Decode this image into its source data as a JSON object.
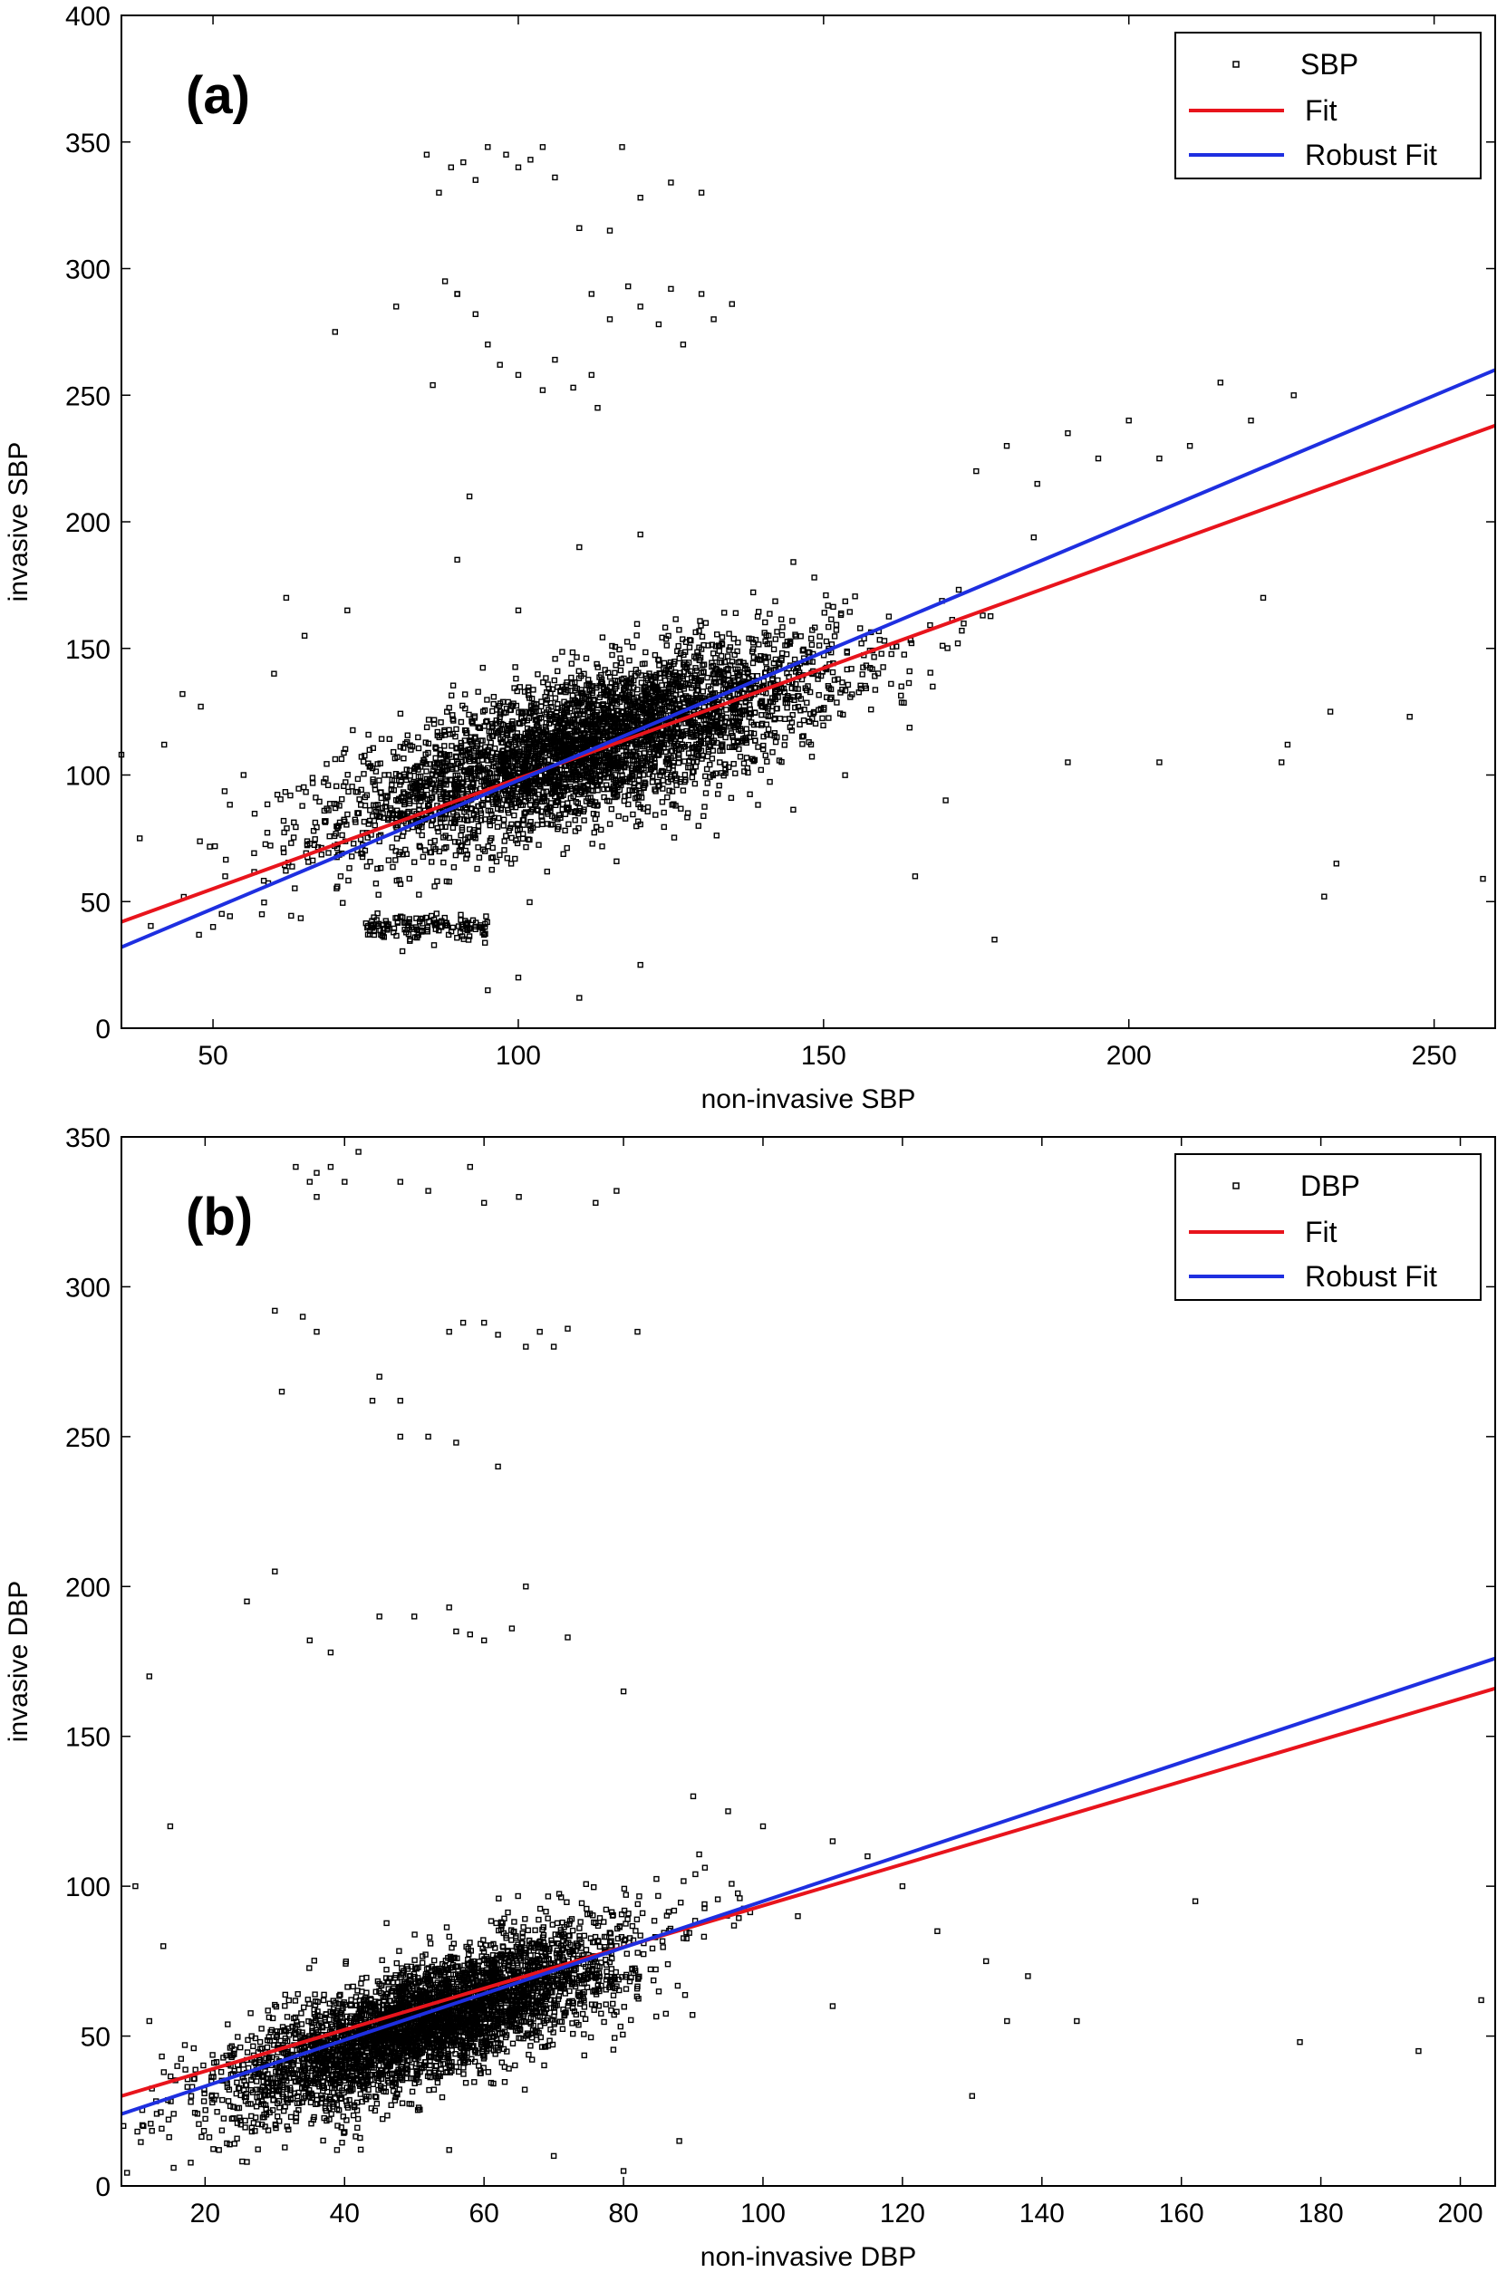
{
  "colors": {
    "fit": "#e8141c",
    "robust_fit": "#1e2fe0",
    "points": "#000000",
    "axes": "#000000",
    "background": "#ffffff"
  },
  "chart_data": [
    {
      "type": "scatter",
      "panel_label": "(a)",
      "xlabel": "non-invasive SBP",
      "ylabel": "invasive SBP",
      "xlim": [
        35,
        260
      ],
      "ylim": [
        0,
        400
      ],
      "xticks": [
        50,
        100,
        150,
        200,
        250
      ],
      "yticks": [
        0,
        50,
        100,
        150,
        200,
        250,
        300,
        350,
        400
      ],
      "grid": false,
      "legend_position": "top-right",
      "legend": [
        "SBP",
        "Fit",
        "Robust Fit"
      ],
      "scatter_series": {
        "name": "SBP",
        "cluster": {
          "center": [
            112,
            112
          ],
          "spread_x": 20,
          "spread_y": 20,
          "correlation": 0.7,
          "approx_points": 4000
        },
        "lower_band": {
          "x_range": [
            75,
            95
          ],
          "y": 40
        },
        "outliers": [
          [
            35,
            108
          ],
          [
            38,
            75
          ],
          [
            42,
            112
          ],
          [
            45,
            132
          ],
          [
            48,
            127
          ],
          [
            50,
            40
          ],
          [
            52,
            60
          ],
          [
            55,
            100
          ],
          [
            58,
            45
          ],
          [
            60,
            140
          ],
          [
            62,
            170
          ],
          [
            65,
            155
          ],
          [
            70,
            275
          ],
          [
            72,
            165
          ],
          [
            80,
            285
          ],
          [
            85,
            345
          ],
          [
            87,
            330
          ],
          [
            89,
            340
          ],
          [
            91,
            342
          ],
          [
            93,
            335
          ],
          [
            95,
            348
          ],
          [
            98,
            345
          ],
          [
            100,
            340
          ],
          [
            102,
            343
          ],
          [
            104,
            348
          ],
          [
            106,
            336
          ],
          [
            110,
            316
          ],
          [
            115,
            315
          ],
          [
            117,
            348
          ],
          [
            120,
            328
          ],
          [
            125,
            334
          ],
          [
            130,
            330
          ],
          [
            112,
            290
          ],
          [
            115,
            280
          ],
          [
            118,
            293
          ],
          [
            120,
            285
          ],
          [
            123,
            278
          ],
          [
            125,
            292
          ],
          [
            127,
            270
          ],
          [
            130,
            290
          ],
          [
            132,
            280
          ],
          [
            135,
            286
          ],
          [
            88,
            295
          ],
          [
            90,
            290
          ],
          [
            93,
            282
          ],
          [
            95,
            270
          ],
          [
            97,
            262
          ],
          [
            100,
            258
          ],
          [
            104,
            252
          ],
          [
            106,
            264
          ],
          [
            109,
            253
          ],
          [
            112,
            258
          ],
          [
            113,
            245
          ],
          [
            86,
            254
          ],
          [
            90,
            290
          ],
          [
            92,
            210
          ],
          [
            90,
            185
          ],
          [
            100,
            165
          ],
          [
            110,
            190
          ],
          [
            120,
            195
          ],
          [
            95,
            15
          ],
          [
            100,
            20
          ],
          [
            110,
            12
          ],
          [
            120,
            25
          ],
          [
            175,
            220
          ],
          [
            180,
            230
          ],
          [
            185,
            215
          ],
          [
            190,
            235
          ],
          [
            195,
            225
          ],
          [
            200,
            240
          ],
          [
            205,
            225
          ],
          [
            210,
            230
          ],
          [
            215,
            255
          ],
          [
            220,
            240
          ],
          [
            227,
            250
          ],
          [
            222,
            170
          ],
          [
            225,
            105
          ],
          [
            226,
            112
          ],
          [
            232,
            52
          ],
          [
            234,
            65
          ],
          [
            233,
            125
          ],
          [
            246,
            123
          ],
          [
            258,
            59
          ],
          [
            205,
            105
          ],
          [
            190,
            105
          ],
          [
            178,
            35
          ],
          [
            170,
            90
          ],
          [
            165,
            60
          ]
        ]
      },
      "fit": {
        "name": "Fit",
        "x": [
          35,
          260
        ],
        "y": [
          42,
          238
        ]
      },
      "robust_fit": {
        "name": "Robust Fit",
        "x": [
          35,
          260
        ],
        "y": [
          32,
          260
        ]
      }
    },
    {
      "type": "scatter",
      "panel_label": "(b)",
      "xlabel": "non-invasive DBP",
      "ylabel": "invasive DBP",
      "xlim": [
        8,
        205
      ],
      "ylim": [
        0,
        350
      ],
      "xticks": [
        20,
        40,
        60,
        80,
        100,
        120,
        140,
        160,
        180,
        200
      ],
      "yticks": [
        0,
        50,
        100,
        150,
        200,
        250,
        300,
        350
      ],
      "grid": false,
      "legend_position": "top-right",
      "legend": [
        "DBP",
        "Fit",
        "Robust Fit"
      ],
      "scatter_series": {
        "name": "DBP",
        "cluster": {
          "center": [
            52,
            55
          ],
          "spread_x": 14,
          "spread_y": 15,
          "correlation": 0.75,
          "approx_points": 4000
        },
        "outliers": [
          [
            33,
            340
          ],
          [
            35,
            335
          ],
          [
            36,
            338
          ],
          [
            38,
            340
          ],
          [
            40,
            335
          ],
          [
            42,
            345
          ],
          [
            36,
            330
          ],
          [
            48,
            335
          ],
          [
            52,
            332
          ],
          [
            58,
            340
          ],
          [
            60,
            328
          ],
          [
            65,
            330
          ],
          [
            76,
            328
          ],
          [
            79,
            332
          ],
          [
            30,
            292
          ],
          [
            34,
            290
          ],
          [
            36,
            285
          ],
          [
            45,
            270
          ],
          [
            48,
            262
          ],
          [
            55,
            285
          ],
          [
            57,
            288
          ],
          [
            60,
            288
          ],
          [
            62,
            284
          ],
          [
            66,
            280
          ],
          [
            68,
            285
          ],
          [
            70,
            280
          ],
          [
            72,
            286
          ],
          [
            82,
            285
          ],
          [
            48,
            250
          ],
          [
            52,
            250
          ],
          [
            56,
            248
          ],
          [
            62,
            240
          ],
          [
            31,
            265
          ],
          [
            44,
            262
          ],
          [
            30,
            205
          ],
          [
            26,
            195
          ],
          [
            35,
            182
          ],
          [
            38,
            178
          ],
          [
            45,
            190
          ],
          [
            50,
            190
          ],
          [
            55,
            193
          ],
          [
            56,
            185
          ],
          [
            58,
            184
          ],
          [
            60,
            182
          ],
          [
            64,
            186
          ],
          [
            66,
            200
          ],
          [
            72,
            183
          ],
          [
            80,
            165
          ],
          [
            90,
            130
          ],
          [
            95,
            125
          ],
          [
            100,
            120
          ],
          [
            110,
            115
          ],
          [
            115,
            110
          ],
          [
            120,
            100
          ],
          [
            125,
            85
          ],
          [
            130,
            30
          ],
          [
            132,
            75
          ],
          [
            135,
            55
          ],
          [
            138,
            70
          ],
          [
            145,
            55
          ],
          [
            162,
            95
          ],
          [
            177,
            48
          ],
          [
            194,
            45
          ],
          [
            203,
            62
          ],
          [
            12,
            170
          ],
          [
            10,
            100
          ],
          [
            15,
            120
          ],
          [
            14,
            80
          ],
          [
            12,
            55
          ],
          [
            16,
            40
          ],
          [
            18,
            30
          ],
          [
            22,
            12
          ],
          [
            26,
            8
          ],
          [
            40,
            18
          ],
          [
            55,
            12
          ],
          [
            70,
            10
          ],
          [
            80,
            5
          ],
          [
            88,
            15
          ],
          [
            105,
            90
          ],
          [
            110,
            60
          ]
        ]
      },
      "fit": {
        "name": "Fit",
        "x": [
          8,
          205
        ],
        "y": [
          30,
          166
        ]
      },
      "robust_fit": {
        "name": "Robust Fit",
        "x": [
          8,
          205
        ],
        "y": [
          24,
          176
        ]
      }
    }
  ]
}
